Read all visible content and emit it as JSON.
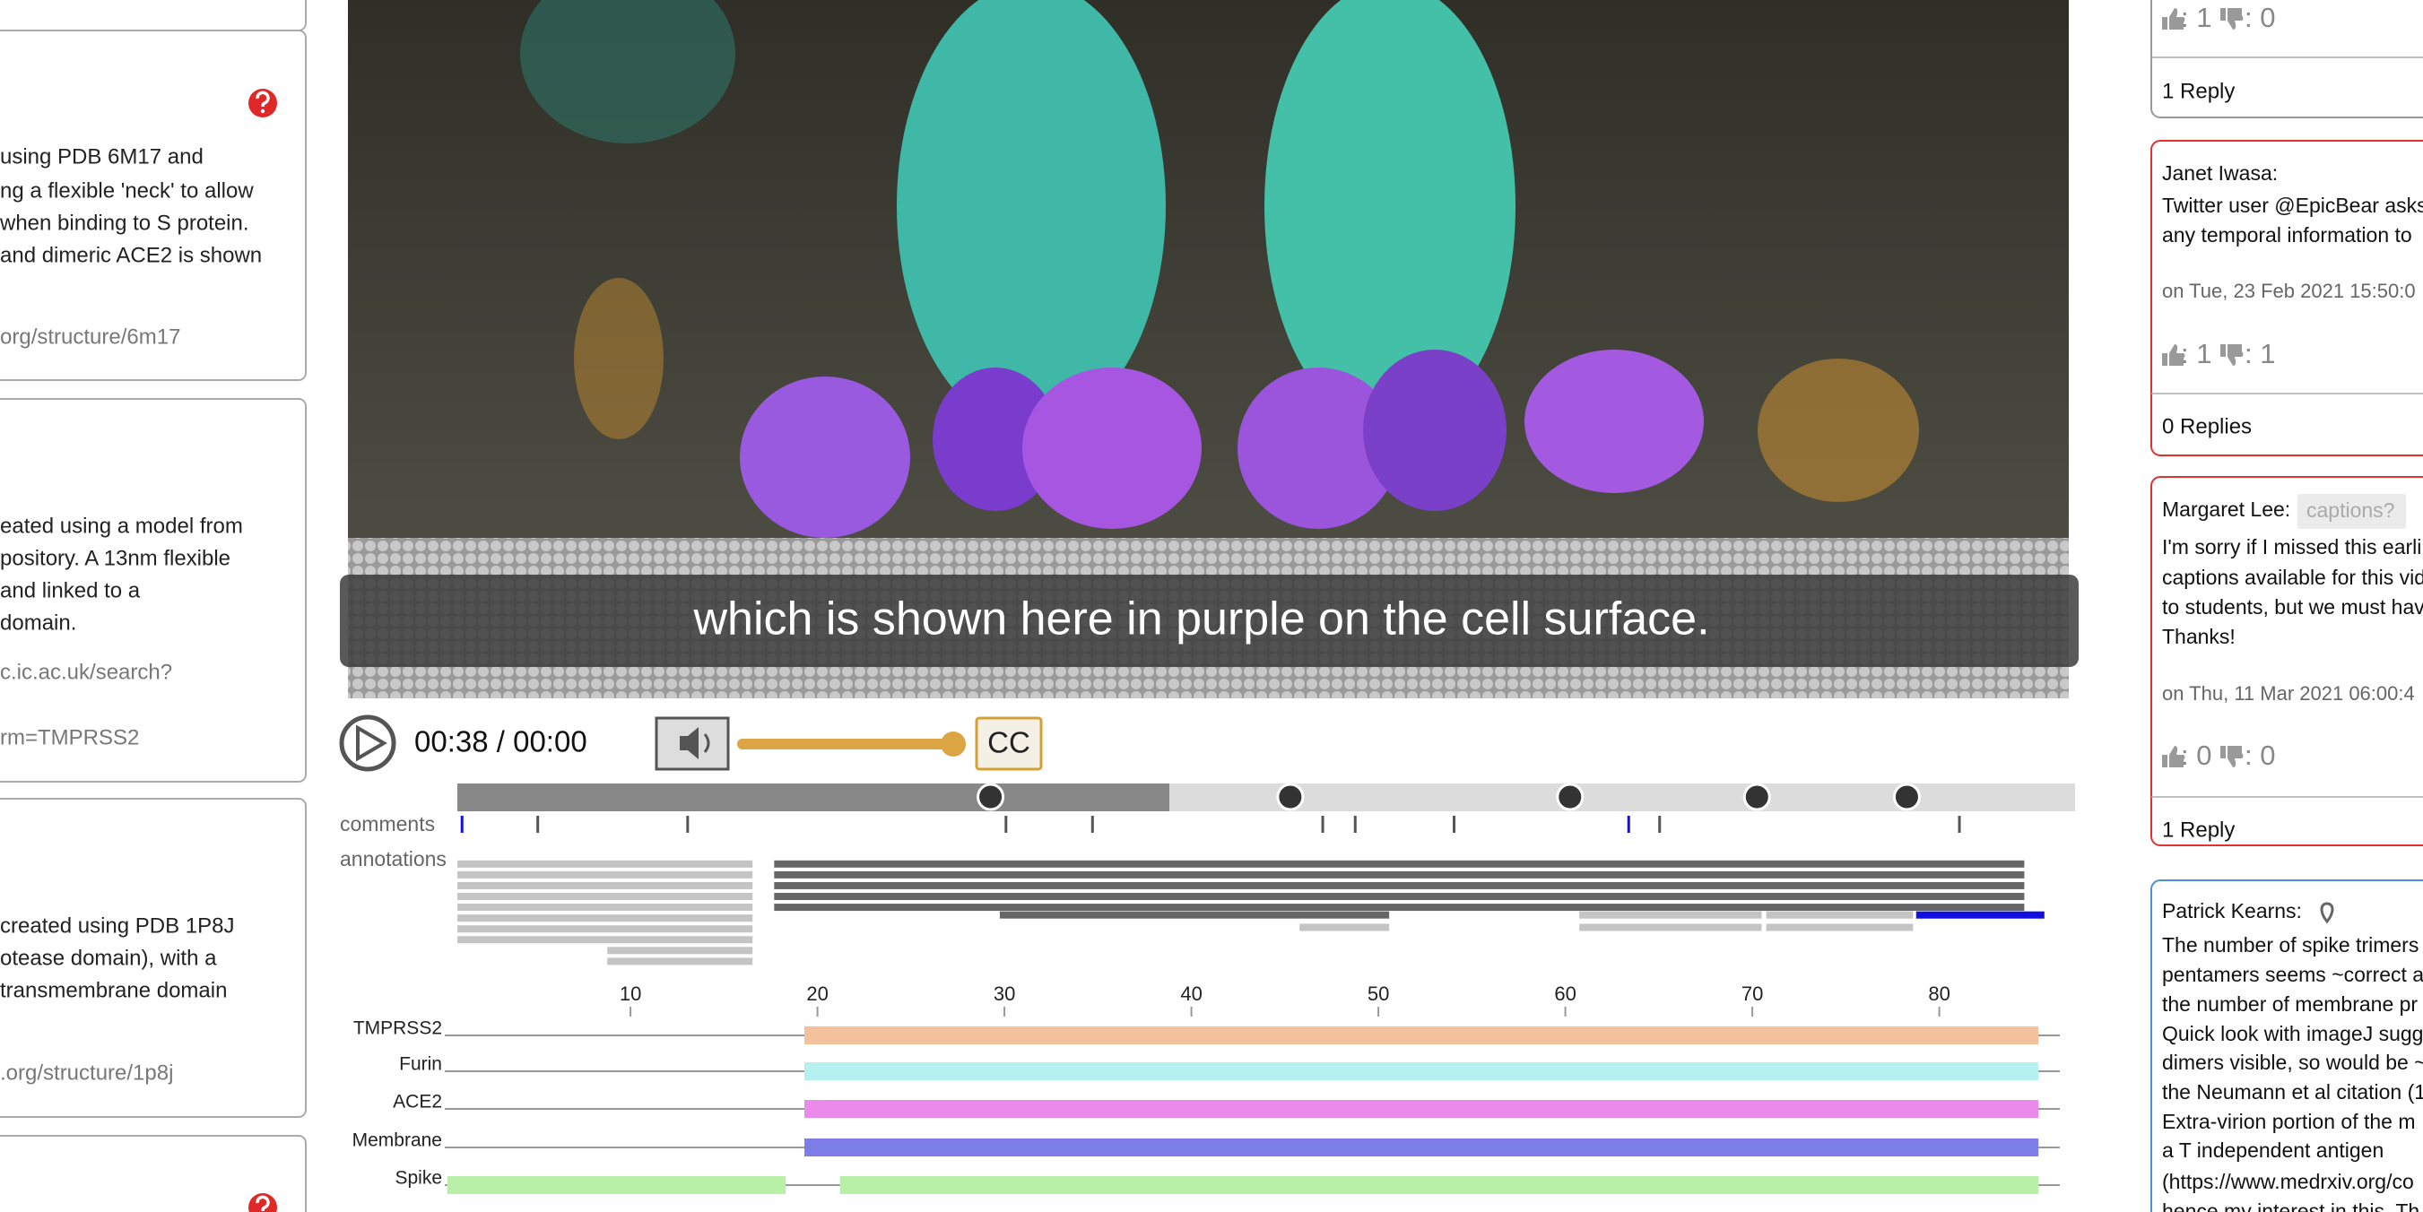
{
  "left_panel": {
    "cards": [
      {
        "lines": []
      },
      {
        "lines": [
          "using PDB 6M17 and",
          "ng a flexible 'neck' to allow",
          "when binding to S protein.",
          "and dimeric ACE2 is shown"
        ],
        "link_lines": [
          "org/structure/6m17"
        ]
      },
      {
        "lines": [
          "eated using a model from",
          "pository. A 13nm flexible",
          "and linked to a",
          "domain."
        ],
        "link_lines": [
          "c.ic.ac.uk/search?",
          "rm=TMPRSS2"
        ]
      },
      {
        "lines": [
          "created using PDB 1P8J",
          "otease domain), with a",
          "transmembrane domain"
        ],
        "link_lines": [
          ".org/structure/1p8j"
        ]
      },
      {
        "lines": []
      }
    ]
  },
  "video": {
    "caption": "which is shown here in purple on the cell surface.",
    "time": "00:38 / 00:00",
    "cc_button": "CC"
  },
  "timeline": {
    "comments_label": "comments",
    "annotations_label": "annotations",
    "axis_ticks": [
      10,
      20,
      30,
      40,
      50,
      60,
      70,
      80
    ],
    "tracks": [
      {
        "name": "TMPRSS2",
        "color": "#f3c19c",
        "segments": [
          [
            19.3,
            85.3
          ]
        ]
      },
      {
        "name": "Furin",
        "color": "#b6f1f1",
        "segments": [
          [
            19.3,
            85.3
          ]
        ]
      },
      {
        "name": "ACE2",
        "color": "#ec8aec",
        "segments": [
          [
            19.3,
            85.3
          ]
        ]
      },
      {
        "name": "Membrane",
        "color": "#7d7de8",
        "segments": [
          [
            19.3,
            85.3
          ]
        ]
      },
      {
        "name": "Spike",
        "color": "#b8f0a8",
        "segments": [
          [
            0.2,
            18.3
          ],
          [
            21.2,
            85.3
          ]
        ]
      }
    ]
  },
  "right_panel": {
    "cards": [
      {
        "likes": ": 1",
        "dislikes": ": 0",
        "replies": "1 Reply"
      },
      {
        "author": "Janet Iwasa:",
        "lines": [
          "Twitter user @EpicBear asks",
          "any temporal information to"
        ],
        "date": "on Tue, 23 Feb 2021 15:50:0",
        "likes": ": 1",
        "dislikes": ": 1",
        "replies": "0 Replies"
      },
      {
        "author": "Margaret Lee:",
        "tag": "captions?",
        "lines": [
          "I'm sorry if I missed this earli",
          "captions available for this vid",
          "to students, but we must hav",
          "Thanks!"
        ],
        "date": "on Thu, 11 Mar 2021 06:00:4",
        "likes": ": 0",
        "dislikes": ": 0",
        "replies": "1 Reply"
      },
      {
        "author": "Patrick Kearns:",
        "lines": [
          "The number of spike trimers a",
          "pentamers seems ~correct a",
          "the number of membrane pr",
          "Quick look with imageJ sugg",
          "dimers visible, so would be ~",
          "the Neumann et al citation (1",
          "Extra-virion portion of the m",
          "a T independent antigen",
          "(https://www.medrxiv.org/co",
          "hence my interest in this. Th"
        ]
      }
    ]
  }
}
